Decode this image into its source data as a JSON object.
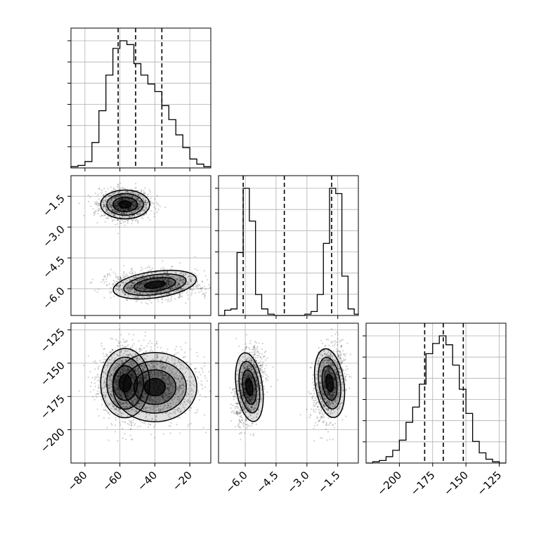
{
  "chart_data": {
    "type": "corner",
    "parameters": [
      {
        "id": "p0",
        "range": [
          -88,
          -8
        ],
        "ticks": [
          -80,
          -60,
          -40,
          -20
        ],
        "tick_labels": [
          "−80",
          "−60",
          "−40",
          "−20"
        ],
        "quantiles": [
          -61,
          -51,
          -36
        ],
        "hist": {
          "edges": [
            -88,
            -84,
            -80,
            -76,
            -72,
            -68,
            -64,
            -60,
            -56,
            -52,
            -48,
            -44,
            -40,
            -36,
            -32,
            -28,
            -24,
            -20,
            -16,
            -12,
            -8
          ],
          "counts": [
            0.01,
            0.02,
            0.05,
            0.2,
            0.45,
            0.73,
            0.94,
            1.0,
            0.97,
            0.82,
            0.73,
            0.66,
            0.6,
            0.49,
            0.38,
            0.26,
            0.16,
            0.07,
            0.03,
            0.01
          ]
        }
      },
      {
        "id": "p1",
        "range": [
          -7.3,
          -0.5
        ],
        "ticks": [
          -6.0,
          -4.5,
          -3.0,
          -1.5
        ],
        "tick_labels": [
          "−6.0",
          "−4.5",
          "−3.0",
          "−1.5"
        ],
        "quantiles": [
          -6.1,
          -4.1,
          -1.8
        ],
        "hist": {
          "edges": [
            -7.3,
            -7.0,
            -6.7,
            -6.4,
            -6.1,
            -5.8,
            -5.5,
            -5.2,
            -4.9,
            -4.6,
            -4.3,
            -4.0,
            -3.7,
            -3.4,
            -3.1,
            -2.8,
            -2.5,
            -2.2,
            -1.9,
            -1.6,
            -1.3,
            -1.0,
            -0.7,
            -0.5
          ],
          "counts": [
            0,
            0.04,
            0.05,
            0.48,
            0.97,
            0.72,
            0.16,
            0.05,
            0.01,
            0,
            0,
            0,
            0,
            0,
            0.01,
            0.03,
            0.16,
            0.55,
            0.97,
            0.93,
            0.3,
            0.05,
            0.01
          ]
        }
      },
      {
        "id": "p2",
        "range": [
          -225,
          -120
        ],
        "ticks": [
          -125,
          -150,
          -175,
          -200
        ],
        "tick_labels": [
          "−125",
          "−150",
          "−175",
          "−200"
        ],
        "quantiles": [
          -181,
          -167,
          -152
        ],
        "hist": {
          "edges": [
            -225,
            -220,
            -215,
            -210,
            -205,
            -200,
            -195,
            -190,
            -185,
            -180,
            -175,
            -170,
            -165,
            -160,
            -155,
            -150,
            -145,
            -140,
            -135,
            -130,
            -125,
            -120
          ],
          "counts": [
            0,
            0.01,
            0.02,
            0.05,
            0.1,
            0.18,
            0.32,
            0.44,
            0.62,
            0.86,
            0.94,
            1.0,
            0.93,
            0.77,
            0.58,
            0.39,
            0.17,
            0.08,
            0.03,
            0.01,
            0
          ]
        }
      }
    ],
    "clusters": [
      {
        "center": [
          -57,
          -1.9,
          -165
        ],
        "sd": [
          7,
          0.35,
          13
        ],
        "rho12": 0.25,
        "weight": 0.5
      },
      {
        "center": [
          -40,
          -5.8,
          -168
        ],
        "sd": [
          12,
          0.32,
          13
        ],
        "rho12": 0.3,
        "weight": 0.5
      }
    ],
    "hist_y_ticks": 6,
    "pixel_density_grid": true,
    "grid": true
  }
}
